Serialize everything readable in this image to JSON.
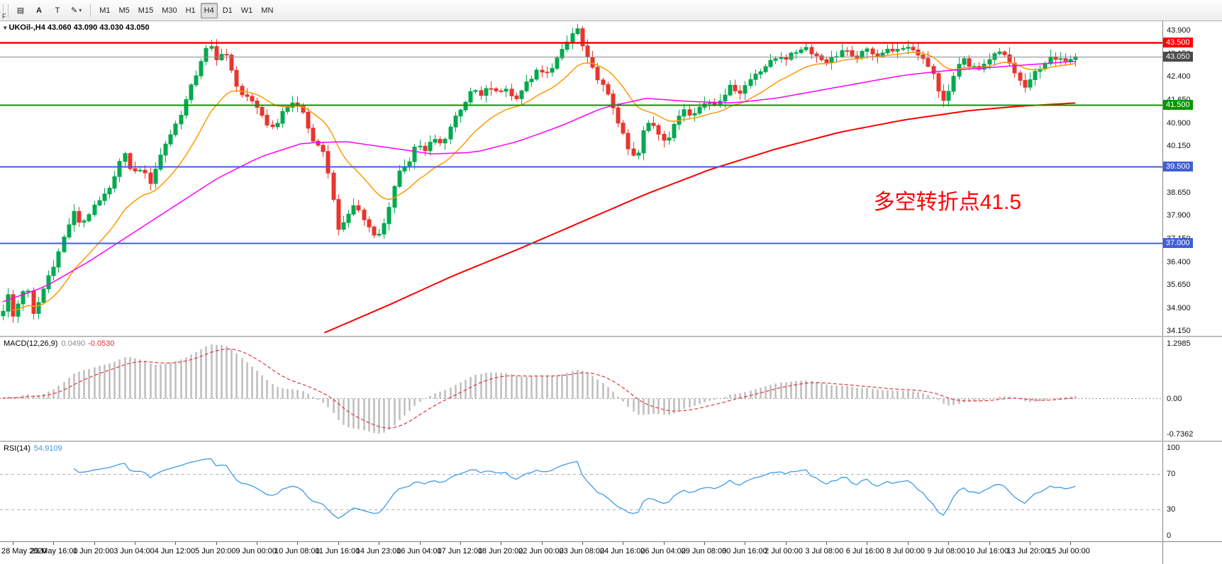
{
  "toolbar": {
    "buttons": [
      {
        "id": "chart-window",
        "glyph": "▤"
      },
      {
        "id": "annotation-a",
        "glyph": "A"
      },
      {
        "id": "text-label",
        "glyph": "T"
      },
      {
        "id": "drawing-tool",
        "glyph": "✎",
        "caret": "▾"
      }
    ],
    "timeframes": [
      "M1",
      "M5",
      "M15",
      "M30",
      "H1",
      "H4",
      "D1",
      "W1",
      "MN"
    ],
    "active_timeframe": "H4",
    "f_label": "F"
  },
  "chart": {
    "title": "UKOil-,H4 43.060 43.090 43.030 43.050",
    "symbol": "UKOil-",
    "period": "H4",
    "open": "43.060",
    "high": "43.090",
    "low": "43.030",
    "close": "43.050"
  },
  "price_pane": {
    "axis_ticks": [
      "43.900",
      "43.150",
      "42.400",
      "41.650",
      "40.900",
      "40.150",
      "39.400",
      "38.650",
      "37.900",
      "37.150",
      "36.400",
      "35.650",
      "34.900",
      "34.150"
    ],
    "range": [
      34.0,
      44.2
    ],
    "hlines": [
      {
        "price": 43.5,
        "label": "43.500",
        "color": "#ff0000",
        "width": 2.5
      },
      {
        "price": 41.5,
        "label": "41.500",
        "color": "#009a00",
        "width": 2
      },
      {
        "price": 39.5,
        "label": "39.500",
        "color": "#3f5fd8",
        "width": 2
      },
      {
        "price": 37.0,
        "label": "37.000",
        "color": "#3f5fd8",
        "width": 2
      }
    ],
    "current_price": {
      "value": 43.05,
      "label": "43.050",
      "line_color": "#8c8c8c",
      "badge_color": "#4a4a4a"
    },
    "annotation": {
      "text": "多空转折点41.5",
      "color": "#ff0000",
      "x_frac": 0.751,
      "price": 38.5,
      "font_size": 30
    }
  },
  "macd_pane": {
    "title": "MACD(12,26,9)",
    "value_main": "0.0490",
    "value_signal": "-0.0530",
    "axis": [
      "1.2985",
      "0.00",
      "-0.7362"
    ]
  },
  "rsi_pane": {
    "title": "RSI(14)",
    "value": "54.9109",
    "axis": [
      "100",
      "70",
      "30",
      "0"
    ],
    "levels": [
      70,
      30
    ]
  },
  "time_axis": {
    "labels": [
      "28 May 2020",
      "29 May 16:00",
      "1 Jun 20:00",
      "3 Jun 04:00",
      "4 Jun 12:00",
      "5 Jun 20:00",
      "9 Jun 00:00",
      "10 Jun 08:00",
      "11 Jun 16:00",
      "14 Jun 23:00",
      "16 Jun 04:00",
      "17 Jun 12:00",
      "18 Jun 20:00",
      "22 Jun 00:00",
      "23 Jun 08:00",
      "24 Jun 16:00",
      "26 Jun 04:00",
      "29 Jun 08:00",
      "30 Jun 16:00",
      "2 Jul 00:00",
      "3 Jul 08:00",
      "6 Jul 16:00",
      "8 Jul 00:00",
      "9 Jul 08:00",
      "10 Jul 16:00",
      "13 Jul 20:00",
      "15 Jul 00:00"
    ],
    "first_label_bar": 2,
    "bars_per_label": 8
  },
  "colors": {
    "bull": "#00a94f",
    "bear": "#e8352e",
    "ma_fast": "#ff9900",
    "ma_mid": "#ff00ff",
    "ma_slow": "#ff0000",
    "macd_hist": "#bdbdbd",
    "macd_signal": "#dd3a3a",
    "rsi": "#3d9be9",
    "level_dash": "#b0b0b0"
  },
  "chart_data": [
    {
      "type": "candlestick",
      "title": "UKOil- H4 candles (28 May 2020 - 15 Jul 2020)",
      "n_bars": 212,
      "ylim": [
        34.0,
        44.2
      ],
      "last_close": 43.05,
      "noise": 0.16,
      "close_path": [
        [
          0.0,
          34.85
        ],
        [
          0.004,
          35.4
        ],
        [
          0.01,
          34.55
        ],
        [
          0.016,
          35.25
        ],
        [
          0.022,
          35.7
        ],
        [
          0.028,
          34.65
        ],
        [
          0.034,
          35.15
        ],
        [
          0.042,
          35.9
        ],
        [
          0.05,
          36.5
        ],
        [
          0.058,
          37.3
        ],
        [
          0.066,
          38.0
        ],
        [
          0.073,
          37.6
        ],
        [
          0.08,
          37.95
        ],
        [
          0.09,
          38.35
        ],
        [
          0.1,
          38.75
        ],
        [
          0.107,
          39.55
        ],
        [
          0.114,
          39.85
        ],
        [
          0.121,
          39.25
        ],
        [
          0.129,
          39.45
        ],
        [
          0.137,
          38.95
        ],
        [
          0.144,
          39.6
        ],
        [
          0.151,
          40.2
        ],
        [
          0.159,
          40.7
        ],
        [
          0.167,
          41.3
        ],
        [
          0.174,
          41.95
        ],
        [
          0.181,
          42.55
        ],
        [
          0.188,
          43.25
        ],
        [
          0.194,
          43.35
        ],
        [
          0.2,
          42.85
        ],
        [
          0.206,
          43.4
        ],
        [
          0.212,
          42.7
        ],
        [
          0.219,
          41.95
        ],
        [
          0.227,
          41.8
        ],
        [
          0.234,
          41.45
        ],
        [
          0.241,
          41.2
        ],
        [
          0.249,
          40.7
        ],
        [
          0.257,
          41.0
        ],
        [
          0.264,
          41.4
        ],
        [
          0.271,
          41.6
        ],
        [
          0.279,
          41.3
        ],
        [
          0.287,
          40.45
        ],
        [
          0.294,
          40.1
        ],
        [
          0.301,
          39.8
        ],
        [
          0.308,
          38.4
        ],
        [
          0.314,
          37.3
        ],
        [
          0.32,
          37.8
        ],
        [
          0.328,
          38.3
        ],
        [
          0.336,
          37.8
        ],
        [
          0.343,
          37.45
        ],
        [
          0.35,
          37.2
        ],
        [
          0.357,
          37.8
        ],
        [
          0.364,
          38.7
        ],
        [
          0.371,
          39.4
        ],
        [
          0.379,
          39.7
        ],
        [
          0.386,
          40.3
        ],
        [
          0.393,
          39.95
        ],
        [
          0.401,
          40.4
        ],
        [
          0.409,
          40.2
        ],
        [
          0.416,
          40.7
        ],
        [
          0.423,
          41.2
        ],
        [
          0.431,
          41.6
        ],
        [
          0.439,
          42.0
        ],
        [
          0.446,
          41.75
        ],
        [
          0.453,
          42.1
        ],
        [
          0.461,
          41.85
        ],
        [
          0.469,
          42.05
        ],
        [
          0.476,
          41.65
        ],
        [
          0.483,
          41.95
        ],
        [
          0.491,
          42.3
        ],
        [
          0.499,
          42.6
        ],
        [
          0.506,
          42.45
        ],
        [
          0.513,
          42.8
        ],
        [
          0.521,
          43.2
        ],
        [
          0.529,
          43.7
        ],
        [
          0.535,
          44.0
        ],
        [
          0.541,
          43.3
        ],
        [
          0.547,
          42.8
        ],
        [
          0.554,
          42.4
        ],
        [
          0.561,
          42.0
        ],
        [
          0.569,
          41.4
        ],
        [
          0.577,
          40.6
        ],
        [
          0.584,
          39.95
        ],
        [
          0.591,
          39.7
        ],
        [
          0.597,
          40.6
        ],
        [
          0.604,
          41.0
        ],
        [
          0.611,
          40.6
        ],
        [
          0.619,
          40.3
        ],
        [
          0.627,
          40.9
        ],
        [
          0.634,
          41.4
        ],
        [
          0.641,
          41.2
        ],
        [
          0.649,
          41.4
        ],
        [
          0.657,
          41.6
        ],
        [
          0.664,
          41.5
        ],
        [
          0.671,
          41.8
        ],
        [
          0.679,
          42.1
        ],
        [
          0.687,
          41.9
        ],
        [
          0.694,
          42.2
        ],
        [
          0.701,
          42.5
        ],
        [
          0.709,
          42.7
        ],
        [
          0.717,
          42.9
        ],
        [
          0.724,
          43.1
        ],
        [
          0.731,
          43.0
        ],
        [
          0.739,
          43.2
        ],
        [
          0.747,
          43.4
        ],
        [
          0.754,
          43.2
        ],
        [
          0.761,
          43.0
        ],
        [
          0.769,
          42.9
        ],
        [
          0.777,
          43.1
        ],
        [
          0.784,
          43.3
        ],
        [
          0.791,
          43.0
        ],
        [
          0.799,
          43.1
        ],
        [
          0.807,
          43.3
        ],
        [
          0.814,
          43.1
        ],
        [
          0.821,
          43.2
        ],
        [
          0.829,
          43.3
        ],
        [
          0.837,
          43.2
        ],
        [
          0.844,
          43.4
        ],
        [
          0.851,
          43.2
        ],
        [
          0.859,
          43.0
        ],
        [
          0.867,
          42.5
        ],
        [
          0.873,
          41.8
        ],
        [
          0.879,
          41.6
        ],
        [
          0.887,
          42.5
        ],
        [
          0.894,
          43.0
        ],
        [
          0.901,
          42.8
        ],
        [
          0.909,
          42.6
        ],
        [
          0.917,
          42.8
        ],
        [
          0.924,
          43.1
        ],
        [
          0.931,
          43.2
        ],
        [
          0.939,
          42.8
        ],
        [
          0.947,
          42.3
        ],
        [
          0.954,
          42.0
        ],
        [
          0.961,
          42.5
        ],
        [
          0.969,
          42.8
        ],
        [
          0.977,
          43.0
        ],
        [
          0.984,
          42.9
        ],
        [
          0.992,
          43.0
        ],
        [
          1.0,
          43.05
        ]
      ],
      "overlays": [
        {
          "name": "ma-fast",
          "color": "#ff9900",
          "ema_period": 16
        },
        {
          "name": "ma-mid",
          "color": "#ff00ff",
          "path": [
            [
              0.0,
              35.1
            ],
            [
              0.04,
              35.6
            ],
            [
              0.08,
              36.4
            ],
            [
              0.12,
              37.3
            ],
            [
              0.16,
              38.2
            ],
            [
              0.2,
              39.1
            ],
            [
              0.24,
              39.8
            ],
            [
              0.28,
              40.25
            ],
            [
              0.32,
              40.3
            ],
            [
              0.36,
              40.1
            ],
            [
              0.4,
              39.9
            ],
            [
              0.44,
              39.95
            ],
            [
              0.48,
              40.3
            ],
            [
              0.52,
              40.8
            ],
            [
              0.56,
              41.4
            ],
            [
              0.6,
              41.7
            ],
            [
              0.64,
              41.6
            ],
            [
              0.68,
              41.55
            ],
            [
              0.72,
              41.7
            ],
            [
              0.76,
              41.95
            ],
            [
              0.8,
              42.2
            ],
            [
              0.84,
              42.45
            ],
            [
              0.88,
              42.6
            ],
            [
              0.92,
              42.7
            ],
            [
              0.96,
              42.8
            ],
            [
              1.0,
              42.9
            ]
          ]
        },
        {
          "name": "ma-slow",
          "color": "#ff0000",
          "path": [
            [
              0.3,
              34.1
            ],
            [
              0.36,
              35.0
            ],
            [
              0.42,
              35.95
            ],
            [
              0.48,
              36.8
            ],
            [
              0.54,
              37.7
            ],
            [
              0.6,
              38.6
            ],
            [
              0.66,
              39.4
            ],
            [
              0.72,
              40.05
            ],
            [
              0.78,
              40.6
            ],
            [
              0.84,
              41.0
            ],
            [
              0.9,
              41.3
            ],
            [
              0.95,
              41.45
            ],
            [
              1.0,
              41.55
            ]
          ]
        }
      ],
      "hlines": [
        43.5,
        41.5,
        39.5,
        37.0
      ]
    },
    {
      "type": "bar",
      "name": "MACD(12,26,9)",
      "params": [
        12,
        26,
        9
      ],
      "current_values": [
        0.049,
        -0.053
      ],
      "ylim": [
        -0.7362,
        1.2985
      ]
    },
    {
      "type": "line",
      "name": "RSI(14)",
      "period": 14,
      "current_value": 54.9109,
      "ylim": [
        0,
        100
      ],
      "levels": [
        30,
        70
      ]
    }
  ]
}
